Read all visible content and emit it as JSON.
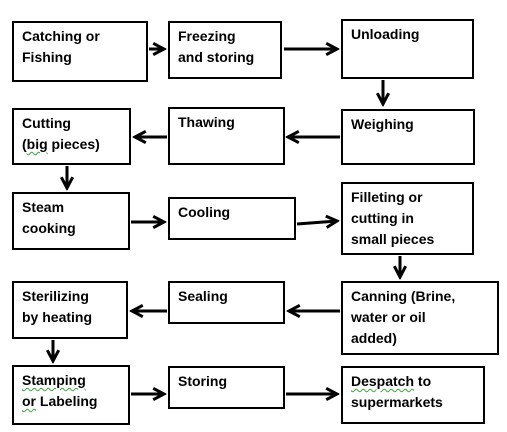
{
  "flowchart": {
    "steps": [
      "Catching or\nFishing",
      "Freezing\nand storing",
      "Unloading",
      "Cutting\n(big pieces)",
      "Thawing",
      "Weighing",
      "Steam\ncooking",
      "Cooling",
      "Filleting or\ncutting in\nsmall pieces",
      "Sterilizing\nby heating",
      "Sealing",
      "Canning (Brine,\nwater or oil\nadded)",
      "Stamping\nor Labeling",
      "Storing",
      "Despatch to\nsupermarkets"
    ],
    "spellcheck_marked": [
      "big",
      "Stamping",
      "or",
      "Despatch"
    ]
  }
}
